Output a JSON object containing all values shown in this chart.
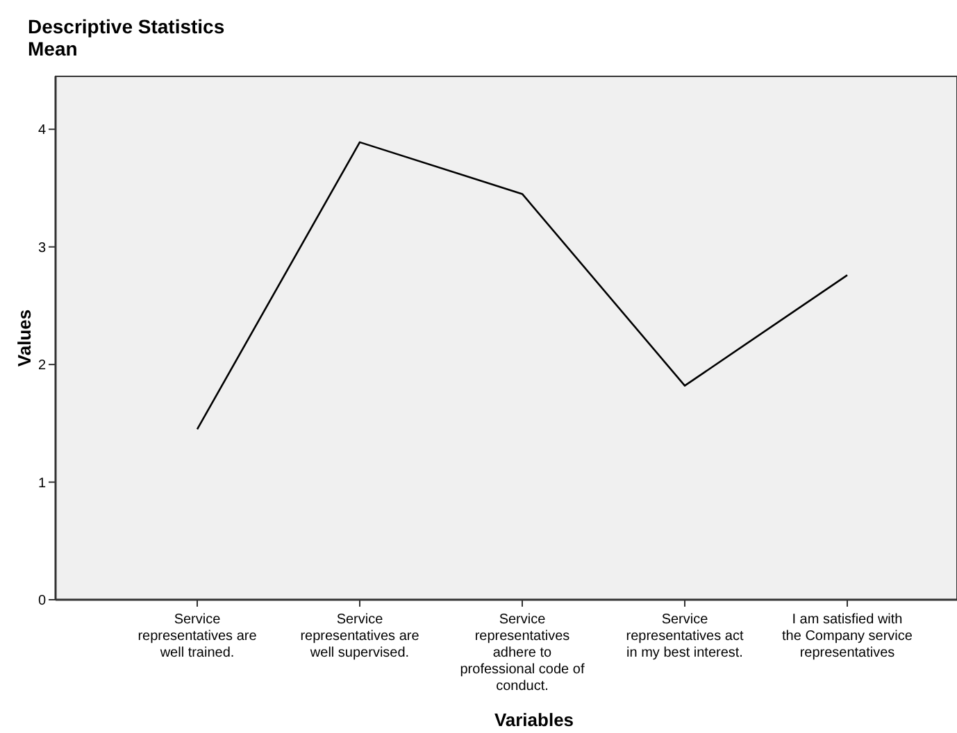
{
  "chart_data": {
    "type": "line",
    "title": "Descriptive Statistics",
    "subtitle": "Mean",
    "xlabel": "Variables",
    "ylabel": "Values",
    "categories": [
      "Service representatives are well trained.",
      "Service representatives are well supervised.",
      "Service representatives adhere to professional code of conduct.",
      "Service representatives act in my best interest.",
      "I am satisfied with the Company service representatives"
    ],
    "series": [
      {
        "color": "#000000",
        "values": [
          1.45,
          3.89,
          3.45,
          1.82,
          2.76
        ]
      }
    ],
    "ylim": [
      0,
      4.45
    ],
    "yticks": [
      0,
      1,
      2,
      3,
      4
    ],
    "grid": false,
    "marker": "none",
    "line_style": "solid"
  }
}
